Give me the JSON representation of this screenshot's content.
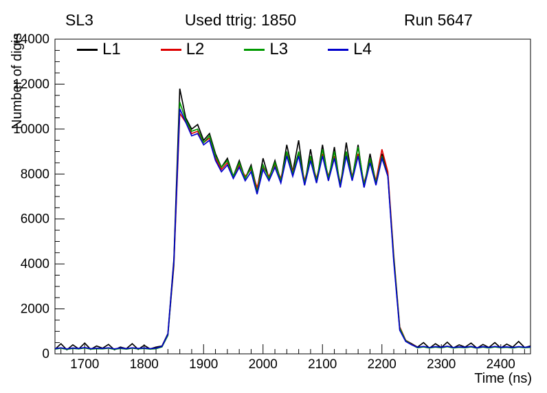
{
  "header": {
    "left_label": "SL3",
    "title": "Used ttrig: 1850",
    "right_label": "Run 5647"
  },
  "chart_data": {
    "type": "line",
    "title": "Used ttrig: 1850",
    "xlabel": "Time (ns)",
    "ylabel": "Number of digis",
    "xlim": [
      1650,
      2450
    ],
    "ylim": [
      0,
      14000
    ],
    "x_ticks": [
      1700,
      1800,
      1900,
      2000,
      2100,
      2200,
      2300,
      2400
    ],
    "y_ticks": [
      0,
      2000,
      4000,
      6000,
      8000,
      10000,
      12000,
      14000
    ],
    "x_minor_step": 20,
    "y_minor_step": 500,
    "grid": false,
    "legend_position": "top-inside-horizontal",
    "x": [
      1650,
      1660,
      1670,
      1680,
      1690,
      1700,
      1710,
      1720,
      1730,
      1740,
      1750,
      1760,
      1770,
      1780,
      1790,
      1800,
      1810,
      1820,
      1830,
      1840,
      1850,
      1860,
      1870,
      1880,
      1890,
      1900,
      1910,
      1920,
      1930,
      1940,
      1950,
      1960,
      1970,
      1980,
      1990,
      2000,
      2010,
      2020,
      2030,
      2040,
      2050,
      2060,
      2070,
      2080,
      2090,
      2100,
      2110,
      2120,
      2130,
      2140,
      2150,
      2160,
      2170,
      2180,
      2190,
      2200,
      2210,
      2220,
      2230,
      2240,
      2250,
      2260,
      2270,
      2280,
      2290,
      2300,
      2310,
      2320,
      2330,
      2340,
      2350,
      2360,
      2370,
      2380,
      2390,
      2400,
      2410,
      2420,
      2430,
      2440,
      2450
    ],
    "series": [
      {
        "name": "L1",
        "color": "#000000",
        "values": [
          200,
          450,
          180,
          400,
          220,
          480,
          200,
          350,
          250,
          420,
          180,
          300,
          230,
          450,
          200,
          380,
          220,
          300,
          350,
          900,
          4200,
          11800,
          10500,
          10000,
          10200,
          9500,
          9800,
          8900,
          8300,
          8700,
          7900,
          8600,
          7800,
          8400,
          7300,
          8700,
          7800,
          8600,
          7700,
          9300,
          8100,
          9500,
          7500,
          9100,
          7600,
          9300,
          7700,
          9200,
          7400,
          9400,
          7800,
          9300,
          7400,
          8900,
          7600,
          8900,
          8000,
          4200,
          1100,
          600,
          450,
          300,
          500,
          250,
          450,
          280,
          520,
          260,
          400,
          300,
          480,
          250,
          420,
          280,
          500,
          260,
          430,
          300,
          550,
          280,
          350
        ]
      },
      {
        "name": "L2",
        "color": "#dd0000",
        "values": [
          220,
          260,
          210,
          250,
          230,
          270,
          220,
          240,
          230,
          260,
          210,
          250,
          220,
          260,
          230,
          250,
          220,
          240,
          320,
          850,
          3900,
          10700,
          10300,
          9800,
          9900,
          9400,
          9600,
          8700,
          8200,
          8500,
          7900,
          8400,
          7900,
          8200,
          7400,
          8300,
          7900,
          8400,
          7800,
          8900,
          8100,
          8900,
          7700,
          8700,
          7800,
          8900,
          7900,
          8800,
          7600,
          8900,
          7900,
          8900,
          7600,
          8600,
          7700,
          9100,
          8100,
          4400,
          1200,
          600,
          420,
          280,
          320,
          270,
          310,
          280,
          330,
          270,
          300,
          280,
          320,
          260,
          310,
          270,
          320,
          280,
          300,
          270,
          310,
          280,
          300
        ]
      },
      {
        "name": "L3",
        "color": "#009900",
        "values": [
          210,
          250,
          200,
          240,
          220,
          260,
          210,
          230,
          220,
          250,
          200,
          240,
          210,
          250,
          220,
          240,
          210,
          230,
          310,
          820,
          4000,
          11200,
          10400,
          9900,
          10000,
          9400,
          9700,
          8800,
          8300,
          8600,
          7900,
          8500,
          7800,
          8300,
          7200,
          8400,
          7800,
          8500,
          7700,
          9000,
          8000,
          9000,
          7600,
          8800,
          7700,
          9100,
          7800,
          9000,
          7500,
          9000,
          7800,
          9200,
          7500,
          8700,
          7600,
          8800,
          7900,
          4300,
          1150,
          580,
          410,
          270,
          310,
          260,
          300,
          270,
          320,
          260,
          290,
          270,
          310,
          250,
          300,
          260,
          310,
          270,
          290,
          260,
          300,
          270,
          290
        ]
      },
      {
        "name": "L4",
        "color": "#0000cc",
        "values": [
          230,
          270,
          220,
          260,
          240,
          280,
          230,
          250,
          240,
          270,
          220,
          260,
          230,
          270,
          240,
          260,
          230,
          250,
          330,
          870,
          4100,
          10900,
          10300,
          9700,
          9800,
          9300,
          9500,
          8600,
          8100,
          8400,
          7800,
          8300,
          7700,
          8100,
          7100,
          8200,
          7700,
          8300,
          7600,
          8800,
          7900,
          8800,
          7500,
          8600,
          7600,
          8800,
          7700,
          8700,
          7400,
          8800,
          7700,
          8800,
          7400,
          8500,
          7500,
          8700,
          7900,
          4100,
          1050,
          550,
          400,
          290,
          330,
          280,
          320,
          290,
          340,
          280,
          310,
          290,
          330,
          270,
          320,
          280,
          330,
          290,
          310,
          280,
          320,
          290,
          310
        ]
      }
    ]
  }
}
